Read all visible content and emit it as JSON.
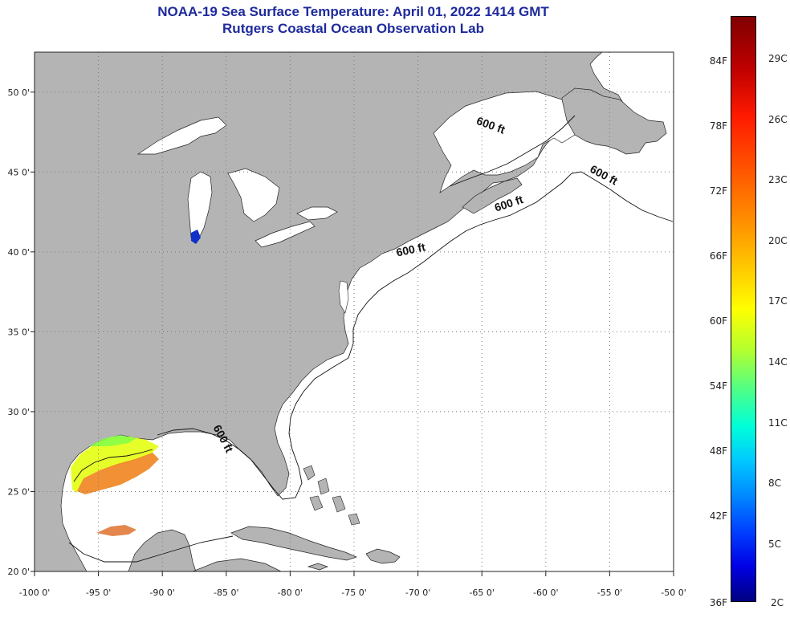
{
  "title": {
    "line1": "NOAA-19 Sea Surface Temperature:  April 01, 2022 1414 GMT",
    "line2": "Rutgers Coastal Ocean Observation Lab"
  },
  "map": {
    "lon_range": [
      -100,
      -50
    ],
    "lat_range": [
      20,
      52.5
    ],
    "lon_ticks": [
      {
        "value": -100,
        "label": "-100 0'"
      },
      {
        "value": -95,
        "label": "-95 0'"
      },
      {
        "value": -90,
        "label": "-90 0'"
      },
      {
        "value": -85,
        "label": "-85 0'"
      },
      {
        "value": -80,
        "label": "-80 0'"
      },
      {
        "value": -75,
        "label": "-75 0'"
      },
      {
        "value": -70,
        "label": "-70 0'"
      },
      {
        "value": -65,
        "label": "-65 0'"
      },
      {
        "value": -60,
        "label": "-60 0'"
      },
      {
        "value": -55,
        "label": "-55 0'"
      },
      {
        "value": -50,
        "label": "-50 0'"
      }
    ],
    "lat_ticks": [
      {
        "value": 20,
        "label": "20 0'"
      },
      {
        "value": 25,
        "label": "25 0'"
      },
      {
        "value": 30,
        "label": "30 0'"
      },
      {
        "value": 35,
        "label": "35 0'"
      },
      {
        "value": 40,
        "label": "40 0'"
      },
      {
        "value": 45,
        "label": "45 0'"
      },
      {
        "value": 50,
        "label": "50 0'"
      }
    ],
    "contour_labels": [
      {
        "text": "600 ft",
        "lon": -64.4,
        "lat": 47.7,
        "angle": 20
      },
      {
        "text": "600 ft",
        "lon": -55.6,
        "lat": 44.6,
        "angle": 28
      },
      {
        "text": "600 ft",
        "lon": -62.8,
        "lat": 42.8,
        "angle": -18
      },
      {
        "text": "600 ft",
        "lon": -70.5,
        "lat": 39.9,
        "angle": -12
      },
      {
        "text": "600 ft",
        "lon": -85.5,
        "lat": 28.2,
        "angle": 62
      }
    ],
    "colors": {
      "land": "#b4b4b4",
      "ocean": "#ffffff",
      "grid": "#777777"
    }
  },
  "colorbar": {
    "f_labels": [
      "84F",
      "78F",
      "72F",
      "66F",
      "60F",
      "54F",
      "48F",
      "42F",
      "36F"
    ],
    "c_labels": [
      "29C",
      "26C",
      "23C",
      "20C",
      "17C",
      "14C",
      "11C",
      "8C",
      "5C",
      "2C"
    ]
  }
}
